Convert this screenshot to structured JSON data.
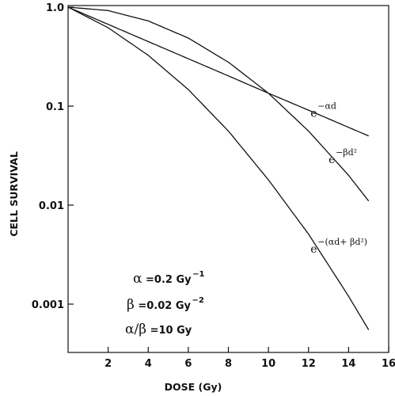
{
  "chart_data": {
    "type": "line",
    "title": "",
    "xlabel": "DOSE (Gy)",
    "ylabel": "CELL SURVIVAL",
    "xlim": [
      0,
      16
    ],
    "ylim": [
      0.0003,
      1.0
    ],
    "yscale": "log",
    "grid": false,
    "x_ticks": [
      2,
      4,
      6,
      8,
      10,
      12,
      14,
      16
    ],
    "x_tick_labels": [
      "2",
      "4",
      "6",
      "8",
      "10",
      "12",
      "14",
      "16"
    ],
    "y_ticks": [
      1.0,
      0.1,
      0.01,
      0.001
    ],
    "y_tick_labels": [
      "1.0",
      "0.1",
      "0.01",
      "0.001"
    ],
    "series": [
      {
        "label_base": "e",
        "label_exp": "−αd",
        "x": [
          0,
          2,
          4,
          6,
          8,
          10,
          12,
          14,
          15
        ],
        "y": [
          1.0,
          0.67,
          0.449,
          0.301,
          0.202,
          0.135,
          0.091,
          0.061,
          0.05
        ]
      },
      {
        "label_base": "e",
        "label_exp": "−βd²",
        "x": [
          0,
          2,
          4,
          6,
          8,
          10,
          12,
          14,
          15
        ],
        "y": [
          1.0,
          0.923,
          0.726,
          0.487,
          0.278,
          0.135,
          0.056,
          0.02,
          0.011
        ]
      },
      {
        "label_base": "e",
        "label_exp": "−(αd+ βd²)",
        "x": [
          0,
          2,
          4,
          6,
          8,
          10,
          12,
          14,
          15
        ],
        "y": [
          1.0,
          0.619,
          0.326,
          0.147,
          0.056,
          0.018,
          0.0051,
          0.0012,
          0.00055
        ]
      }
    ],
    "parameters": [
      {
        "symbol": "α",
        "text": " =0.2  Gy",
        "exp": "−1"
      },
      {
        "symbol": "β",
        "text": " =0.02  Gy",
        "exp": "−2"
      },
      {
        "symbol": "α/β",
        "text": " =10  Gy",
        "exp": ""
      }
    ]
  }
}
